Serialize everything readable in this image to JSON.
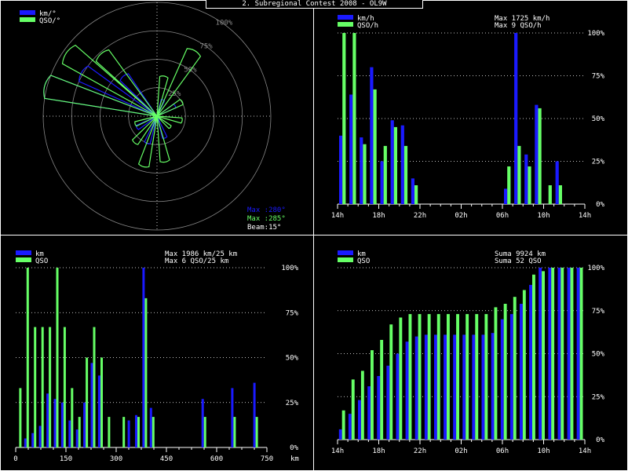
{
  "title": "2. Subregional Contest 2008 - OL9W",
  "colors": {
    "blue": "#1a1aff",
    "green": "#66ff66",
    "white": "#ffffff",
    "grid": "#888888",
    "frame": "#ffffff",
    "bg": "#000000"
  },
  "chart_data": [
    {
      "id": "polar",
      "type": "polar",
      "legend": [
        {
          "name": "km/°",
          "color": "#1a1aff"
        },
        {
          "name": "QSO/°",
          "color": "#66ff66"
        }
      ],
      "ring_labels": [
        "25%",
        "50%",
        "75%",
        "100%"
      ],
      "info": {
        "max_km": "Max :280°",
        "max_qso": "Max :285°",
        "beam": "Beam:15°"
      },
      "km_lobes": [
        {
          "az": 285,
          "r": 1.0
        },
        {
          "az": 300,
          "r": 0.75
        },
        {
          "az": 320,
          "r": 0.45
        },
        {
          "az": 20,
          "r": 0.15
        },
        {
          "az": 60,
          "r": 0.18
        },
        {
          "az": 160,
          "r": 0.2
        },
        {
          "az": 200,
          "r": 0.25
        },
        {
          "az": 240,
          "r": 0.2
        }
      ],
      "qso_lobes": [
        {
          "az": 285,
          "r": 1.0
        },
        {
          "az": 305,
          "r": 0.95
        },
        {
          "az": 318,
          "r": 0.72
        },
        {
          "az": 30,
          "r": 0.65
        },
        {
          "az": 10,
          "r": 0.35
        },
        {
          "az": 60,
          "r": 0.25
        },
        {
          "az": 100,
          "r": 0.22
        },
        {
          "az": 130,
          "r": 0.15
        },
        {
          "az": 170,
          "r": 0.4
        },
        {
          "az": 195,
          "r": 0.45
        },
        {
          "az": 220,
          "r": 0.3
        },
        {
          "az": 250,
          "r": 0.2
        }
      ]
    },
    {
      "id": "hourly",
      "type": "bar",
      "legend": [
        {
          "name": "km/h",
          "color": "#1a1aff"
        },
        {
          "name": "QSO/h",
          "color": "#66ff66"
        }
      ],
      "info": [
        "Max  1725 km/h",
        "Max     9 QSO/h"
      ],
      "x_labels": [
        "14h",
        "18h",
        "22h",
        "02h",
        "06h",
        "10h",
        "14h"
      ],
      "y_labels": [
        "0%",
        "25%",
        "50%",
        "75%",
        "100%"
      ],
      "series": [
        {
          "name": "km/h",
          "values": [
            40,
            64,
            39,
            80,
            25,
            49,
            46,
            15,
            0,
            0,
            0,
            0,
            0,
            0,
            0,
            0,
            9,
            100,
            29,
            58,
            0,
            25,
            0,
            0
          ]
        },
        {
          "name": "QSO/h",
          "values": [
            100,
            100,
            35,
            67,
            34,
            45,
            34,
            11,
            0,
            0,
            0,
            0,
            0,
            0,
            0,
            0,
            22,
            34,
            22,
            56,
            11,
            11,
            0,
            0
          ]
        }
      ]
    },
    {
      "id": "distance",
      "type": "bar",
      "legend": [
        {
          "name": "km",
          "color": "#1a1aff"
        },
        {
          "name": "QSO",
          "color": "#66ff66"
        }
      ],
      "info": [
        "Max  1986 km/25 km",
        "Max     6 QSO/25 km"
      ],
      "x_labels": [
        "0",
        "150",
        "300",
        "450",
        "600",
        "750"
      ],
      "x_unit": "km",
      "y_labels": [
        "0%",
        "25%",
        "50%",
        "75%",
        "100%"
      ],
      "series": [
        {
          "name": "km",
          "values": [
            0,
            5,
            8,
            12,
            30,
            27,
            25,
            15,
            10,
            25,
            47,
            40,
            0,
            0,
            0,
            15,
            18,
            100,
            22,
            0,
            0,
            0,
            0,
            0,
            0,
            27,
            0,
            0,
            0,
            33,
            0,
            0,
            36,
            0
          ]
        },
        {
          "name": "QSO",
          "values": [
            33,
            100,
            67,
            67,
            67,
            100,
            67,
            33,
            17,
            50,
            67,
            50,
            17,
            0,
            17,
            0,
            17,
            83,
            17,
            0,
            0,
            0,
            0,
            0,
            0,
            17,
            0,
            0,
            0,
            17,
            0,
            0,
            17,
            0
          ]
        }
      ]
    },
    {
      "id": "cumulative",
      "type": "bar",
      "legend": [
        {
          "name": "km",
          "color": "#1a1aff"
        },
        {
          "name": "QSO",
          "color": "#66ff66"
        }
      ],
      "info": [
        "Suma   9924 km",
        "Suma    52 QSO"
      ],
      "x_labels": [
        "14h",
        "18h",
        "22h",
        "02h",
        "06h",
        "10h",
        "14h"
      ],
      "y_labels": [
        "0%",
        "25%",
        "50%",
        "75%",
        "100%"
      ],
      "series": [
        {
          "name": "km",
          "values": [
            6,
            15,
            23,
            31,
            37,
            43,
            50,
            57,
            60,
            61,
            61,
            61,
            61,
            61,
            61,
            61,
            62,
            70,
            73,
            79,
            90,
            100,
            100,
            100,
            100,
            100
          ]
        },
        {
          "name": "QSO",
          "values": [
            17,
            35,
            40,
            52,
            58,
            67,
            71,
            73,
            73,
            73,
            73,
            73,
            73,
            73,
            73,
            73,
            77,
            79,
            83,
            87,
            96,
            98,
            100,
            100,
            100,
            100
          ]
        }
      ]
    }
  ]
}
